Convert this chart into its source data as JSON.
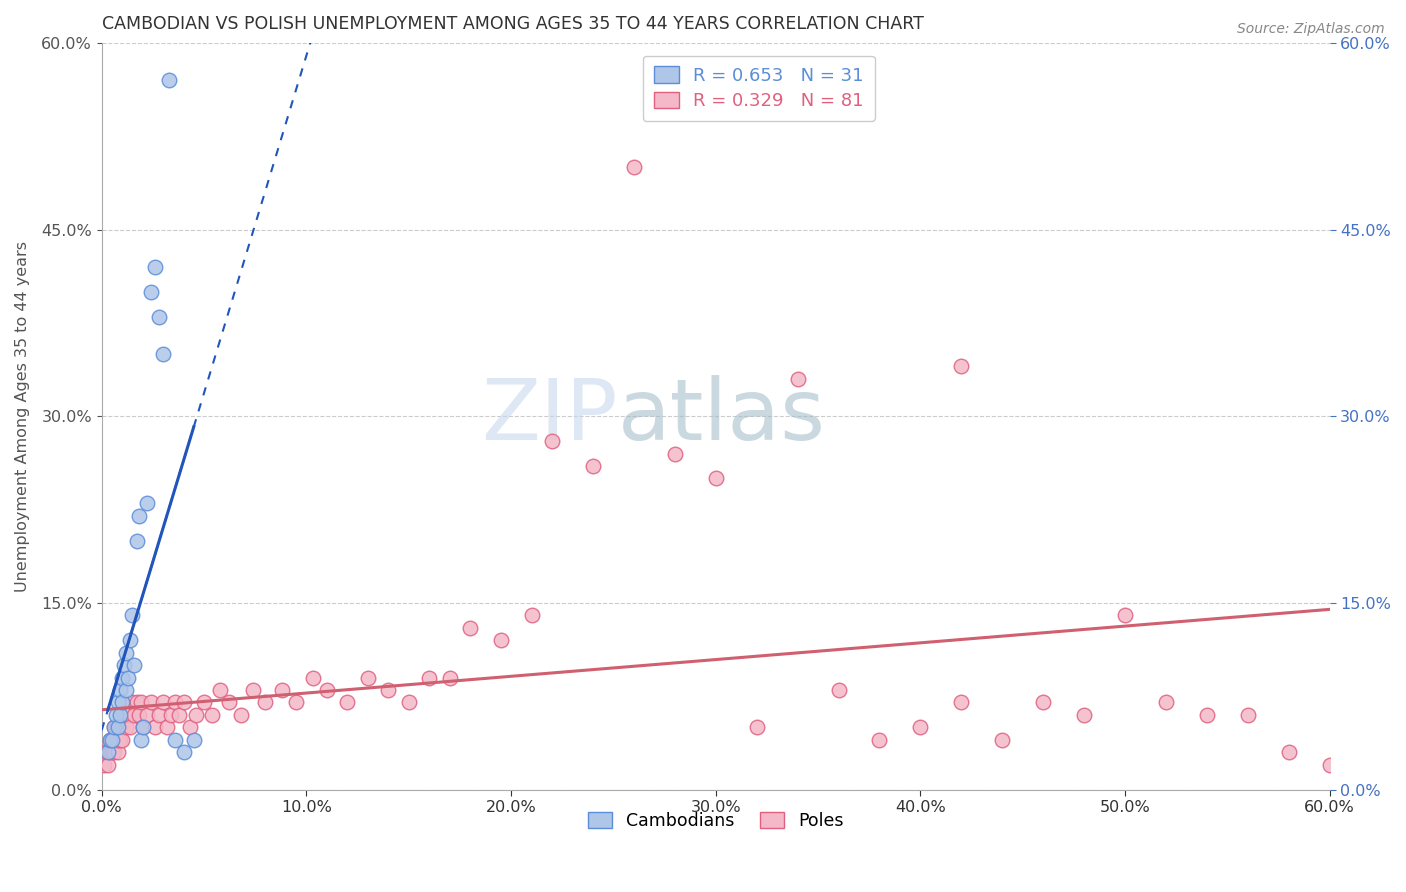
{
  "title": "CAMBODIAN VS POLISH UNEMPLOYMENT AMONG AGES 35 TO 44 YEARS CORRELATION CHART",
  "source": "Source: ZipAtlas.com",
  "ylabel": "Unemployment Among Ages 35 to 44 years",
  "xlim": [
    0.0,
    0.6
  ],
  "ylim": [
    0.0,
    0.6
  ],
  "xticks": [
    0.0,
    0.1,
    0.2,
    0.3,
    0.4,
    0.5,
    0.6
  ],
  "yticks": [
    0.0,
    0.15,
    0.3,
    0.45,
    0.6
  ],
  "cambodian_color": "#aec6e8",
  "cambodian_edge": "#5b8dd9",
  "poles_color": "#f4b8c8",
  "poles_edge": "#e06080",
  "trend_cambodian_color": "#2255bb",
  "trend_poles_color": "#d06070",
  "cambodian_x": [
    0.003,
    0.004,
    0.005,
    0.006,
    0.007,
    0.008,
    0.008,
    0.009,
    0.009,
    0.01,
    0.01,
    0.011,
    0.012,
    0.012,
    0.013,
    0.014,
    0.015,
    0.016,
    0.017,
    0.018,
    0.019,
    0.02,
    0.022,
    0.024,
    0.026,
    0.028,
    0.03,
    0.033,
    0.036,
    0.04,
    0.045
  ],
  "cambodian_y": [
    0.03,
    0.04,
    0.04,
    0.05,
    0.06,
    0.05,
    0.07,
    0.06,
    0.08,
    0.07,
    0.09,
    0.1,
    0.08,
    0.11,
    0.09,
    0.12,
    0.14,
    0.1,
    0.2,
    0.22,
    0.04,
    0.05,
    0.23,
    0.4,
    0.42,
    0.38,
    0.35,
    0.57,
    0.04,
    0.03,
    0.04
  ],
  "poles_x": [
    0.0,
    0.001,
    0.002,
    0.003,
    0.004,
    0.004,
    0.005,
    0.005,
    0.006,
    0.006,
    0.007,
    0.007,
    0.008,
    0.008,
    0.009,
    0.009,
    0.01,
    0.01,
    0.011,
    0.012,
    0.013,
    0.014,
    0.015,
    0.016,
    0.017,
    0.018,
    0.019,
    0.02,
    0.022,
    0.024,
    0.026,
    0.028,
    0.03,
    0.032,
    0.034,
    0.036,
    0.038,
    0.04,
    0.043,
    0.046,
    0.05,
    0.054,
    0.058,
    0.062,
    0.068,
    0.074,
    0.08,
    0.088,
    0.095,
    0.103,
    0.11,
    0.12,
    0.13,
    0.14,
    0.15,
    0.16,
    0.17,
    0.18,
    0.195,
    0.21,
    0.22,
    0.24,
    0.26,
    0.28,
    0.3,
    0.32,
    0.34,
    0.36,
    0.38,
    0.4,
    0.42,
    0.44,
    0.46,
    0.48,
    0.5,
    0.52,
    0.54,
    0.56,
    0.58,
    0.6,
    0.42
  ],
  "poles_y": [
    0.03,
    0.02,
    0.03,
    0.02,
    0.03,
    0.04,
    0.03,
    0.04,
    0.03,
    0.05,
    0.04,
    0.05,
    0.03,
    0.04,
    0.05,
    0.04,
    0.05,
    0.04,
    0.06,
    0.05,
    0.06,
    0.05,
    0.07,
    0.06,
    0.07,
    0.06,
    0.07,
    0.05,
    0.06,
    0.07,
    0.05,
    0.06,
    0.07,
    0.05,
    0.06,
    0.07,
    0.06,
    0.07,
    0.05,
    0.06,
    0.07,
    0.06,
    0.08,
    0.07,
    0.06,
    0.08,
    0.07,
    0.08,
    0.07,
    0.09,
    0.08,
    0.07,
    0.09,
    0.08,
    0.07,
    0.09,
    0.09,
    0.13,
    0.12,
    0.14,
    0.28,
    0.26,
    0.5,
    0.27,
    0.25,
    0.05,
    0.33,
    0.08,
    0.04,
    0.05,
    0.07,
    0.04,
    0.07,
    0.06,
    0.14,
    0.07,
    0.06,
    0.06,
    0.03,
    0.02,
    0.34
  ],
  "legend_R_cam": "0.653",
  "legend_N_cam": "31",
  "legend_R_pol": "0.329",
  "legend_N_pol": "81",
  "legend_color_cam": "#5b8dd9",
  "legend_color_pol": "#e06080"
}
